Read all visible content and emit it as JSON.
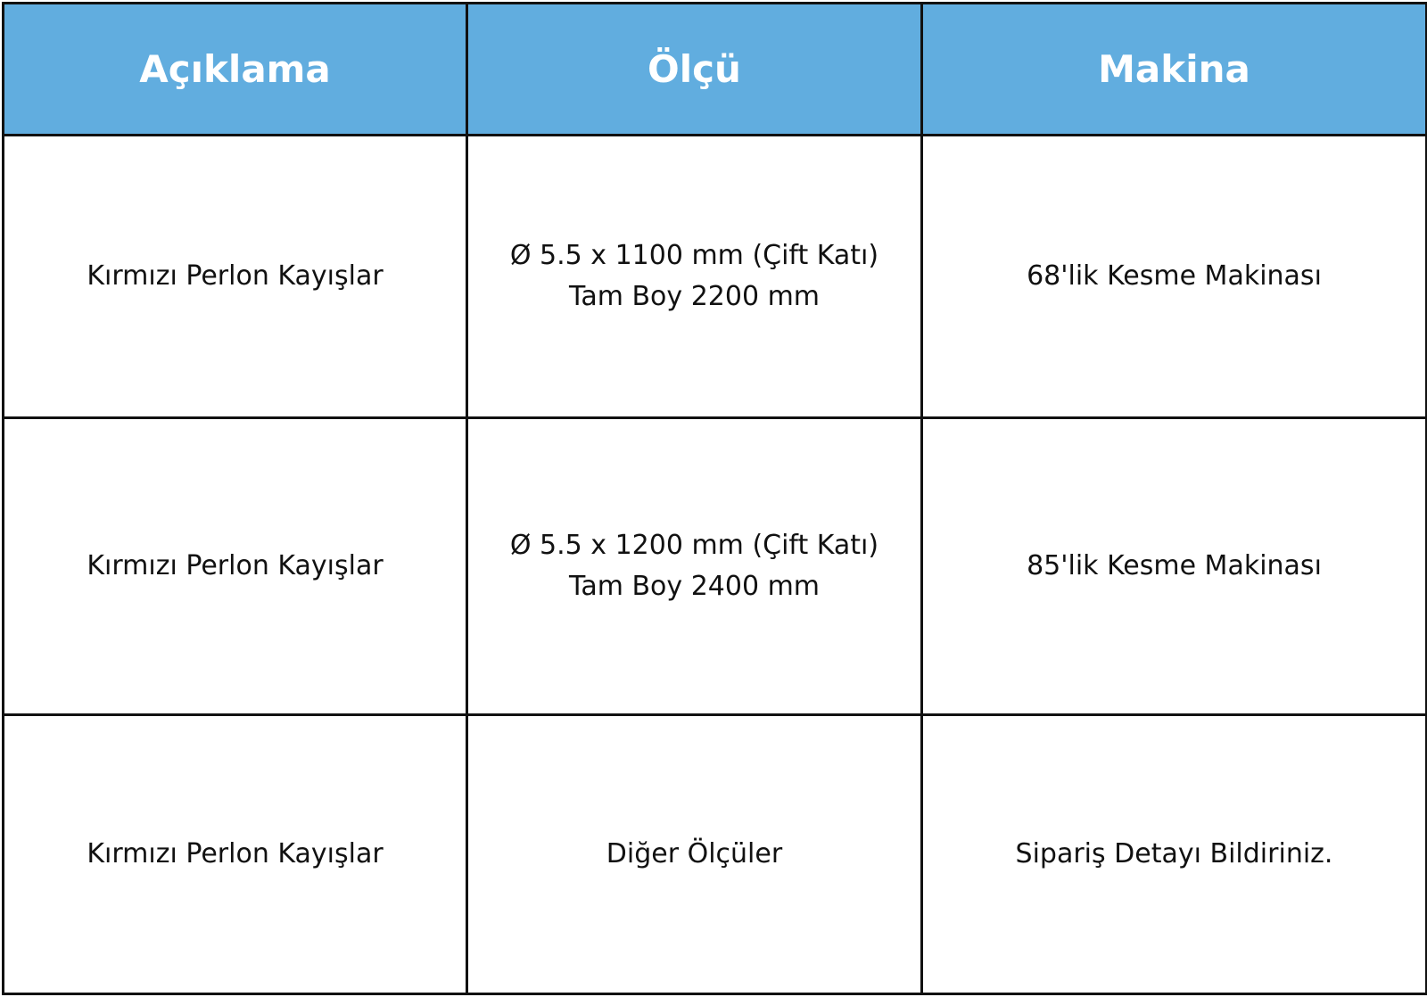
{
  "colors": {
    "header_bg": "#61addf",
    "header_text": "#ffffff",
    "border": "#111111"
  },
  "table": {
    "headers": [
      "Açıklama",
      "Ölçü",
      "Makina"
    ],
    "rows": [
      {
        "aciklama": "Kırmızı Perlon Kayışlar",
        "olcu": [
          "Ø 5.5 x 1100 mm (Çift Katı)",
          "Tam Boy 2200 mm"
        ],
        "makina": "68'lik Kesme Makinası"
      },
      {
        "aciklama": "Kırmızı Perlon Kayışlar",
        "olcu": [
          "Ø 5.5 x 1200 mm (Çift Katı)",
          "Tam Boy 2400 mm"
        ],
        "makina": "85'lik Kesme Makinası"
      },
      {
        "aciklama": "Kırmızı Perlon Kayışlar",
        "olcu": [
          "Diğer Ölçüler"
        ],
        "makina": "Sipariş Detayı Bildiriniz."
      }
    ]
  }
}
